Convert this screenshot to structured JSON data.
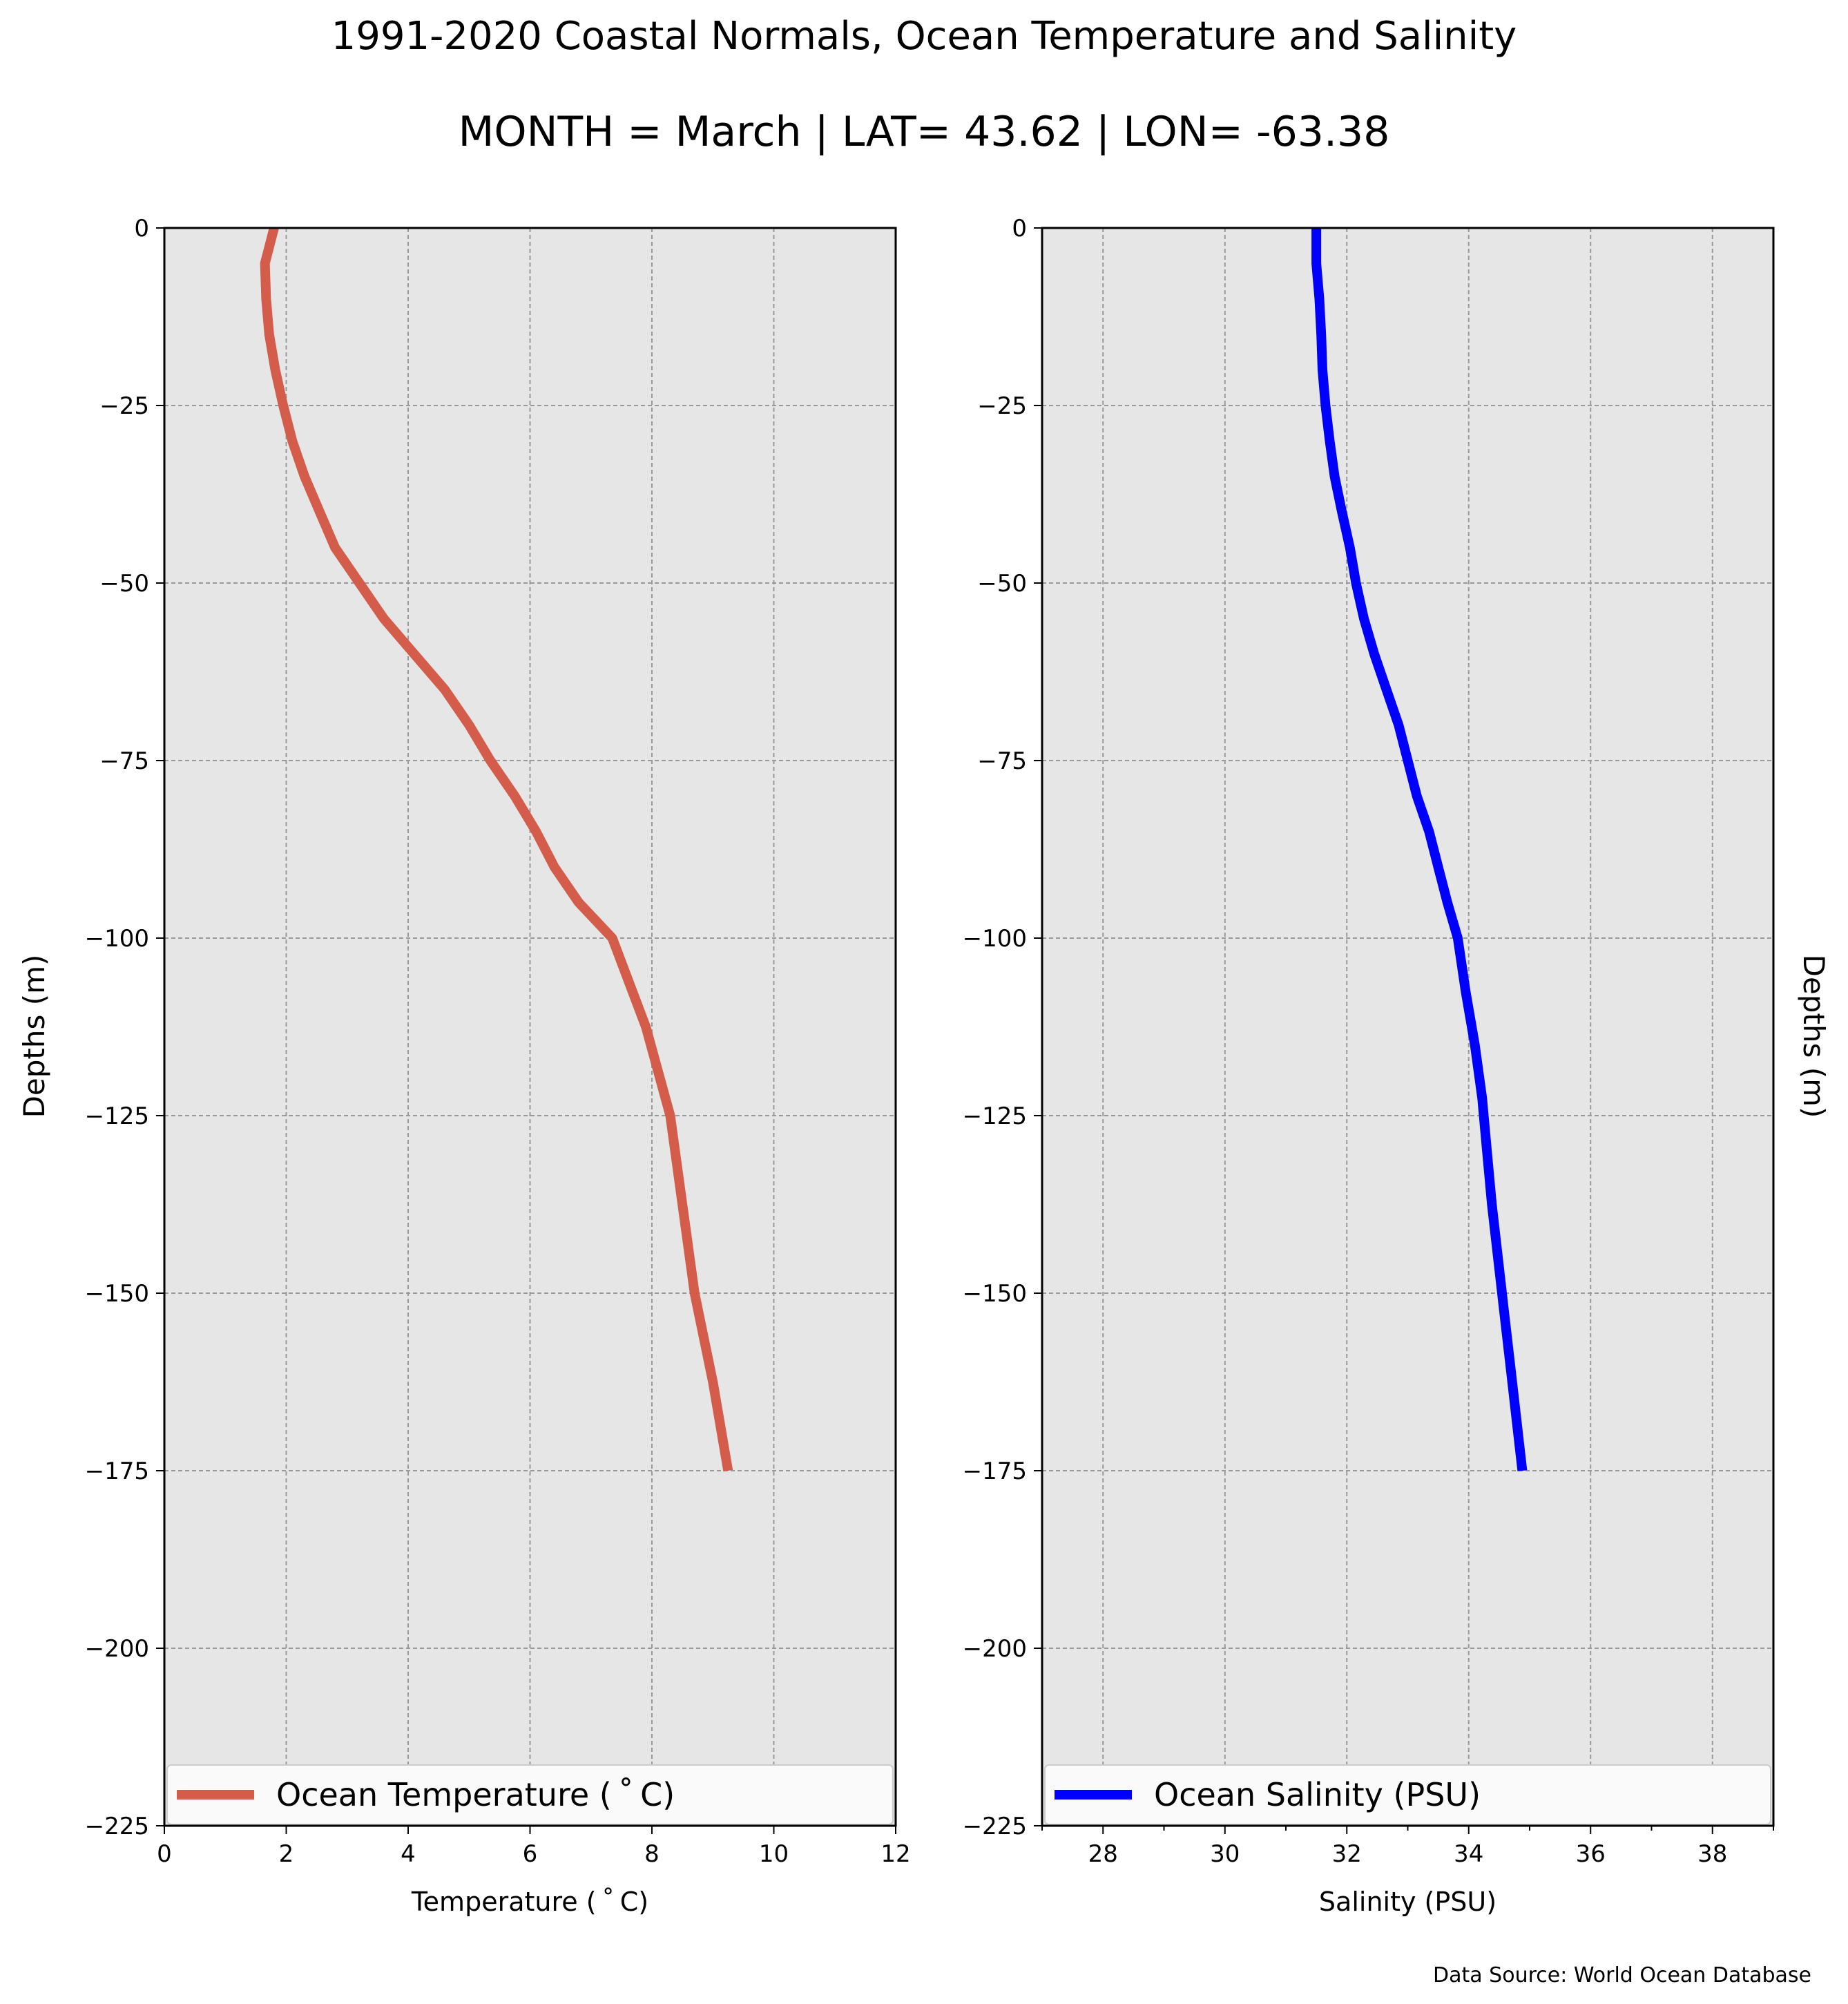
{
  "title": "1991-2020 Coastal Normals, Ocean Temperature and Salinity",
  "subtitle": "MONTH = March | LAT= 43.62 | LON= -63.38",
  "source": "Data Source: World Ocean Database",
  "chart_data": [
    {
      "type": "line",
      "xlabel": "Temperature ($^\\circ$C)",
      "xlabel_display": "Temperature ( ˚ C)",
      "ylabel": "Depths (m)",
      "xlim": [
        0,
        12
      ],
      "ylim": [
        -225,
        0
      ],
      "xticks": [
        "0",
        "2",
        "4",
        "6",
        "8",
        "10",
        "12"
      ],
      "xtick_values": [
        0,
        2,
        4,
        6,
        8,
        10,
        12
      ],
      "yticks": [
        "0",
        "−25",
        "−50",
        "−75",
        "−100",
        "−125",
        "−150",
        "−175",
        "−200",
        "−225"
      ],
      "ytick_values": [
        0,
        -25,
        -50,
        -75,
        -100,
        -125,
        -150,
        -175,
        -200,
        -225
      ],
      "grid": true,
      "legend_position": "lower-left",
      "series": [
        {
          "name": "Ocean Temperature ( ˚ C)",
          "color": "#d45c4a",
          "x": [
            1.8,
            1.65,
            1.67,
            1.72,
            1.82,
            1.95,
            2.1,
            2.3,
            2.55,
            2.8,
            3.2,
            3.6,
            4.1,
            4.6,
            5.0,
            5.35,
            5.75,
            6.1,
            6.4,
            6.8,
            7.35,
            7.9,
            8.3,
            8.7,
            9.0,
            9.25
          ],
          "y": [
            0,
            -5,
            -10,
            -15,
            -20,
            -25,
            -30,
            -35,
            -40,
            -45,
            -50,
            -55,
            -60,
            -65,
            -70,
            -75,
            -80,
            -85,
            -90,
            -95,
            -100,
            -112.5,
            -125,
            -150,
            -162.5,
            -175
          ]
        }
      ]
    },
    {
      "type": "line",
      "xlabel": "Salinity (PSU)",
      "ylabel": "Depths (m)",
      "xlim": [
        27,
        39
      ],
      "ylim": [
        -225,
        0
      ],
      "xticks": [
        "28",
        "30",
        "32",
        "34",
        "36",
        "38"
      ],
      "xtick_values": [
        28,
        30,
        32,
        34,
        36,
        38
      ],
      "yticks": [
        "0",
        "−25",
        "−50",
        "−75",
        "−100",
        "−125",
        "−150",
        "−175",
        "−200",
        "−225"
      ],
      "ytick_values": [
        0,
        -25,
        -50,
        -75,
        -100,
        -125,
        -150,
        -175,
        -200,
        -225
      ],
      "grid": true,
      "legend_position": "lower-left",
      "series": [
        {
          "name": "Ocean Salinity (PSU)",
          "color": "#0000ff",
          "x": [
            31.5,
            31.5,
            31.55,
            31.58,
            31.6,
            31.65,
            31.72,
            31.8,
            31.92,
            32.05,
            32.15,
            32.28,
            32.45,
            32.65,
            32.85,
            33.0,
            33.15,
            33.35,
            33.5,
            33.65,
            33.82,
            33.95,
            34.1,
            34.22,
            34.3,
            34.38,
            34.48,
            34.58,
            34.68,
            34.78,
            34.88
          ],
          "y": [
            0,
            -5,
            -10,
            -15,
            -20,
            -25,
            -30,
            -35,
            -40,
            -45,
            -50,
            -55,
            -60,
            -65,
            -70,
            -75,
            -80,
            -85,
            -90,
            -95,
            -100,
            -107.5,
            -115,
            -122.5,
            -130,
            -137.5,
            -145,
            -152.5,
            -160,
            -167.5,
            -175
          ]
        }
      ]
    }
  ]
}
